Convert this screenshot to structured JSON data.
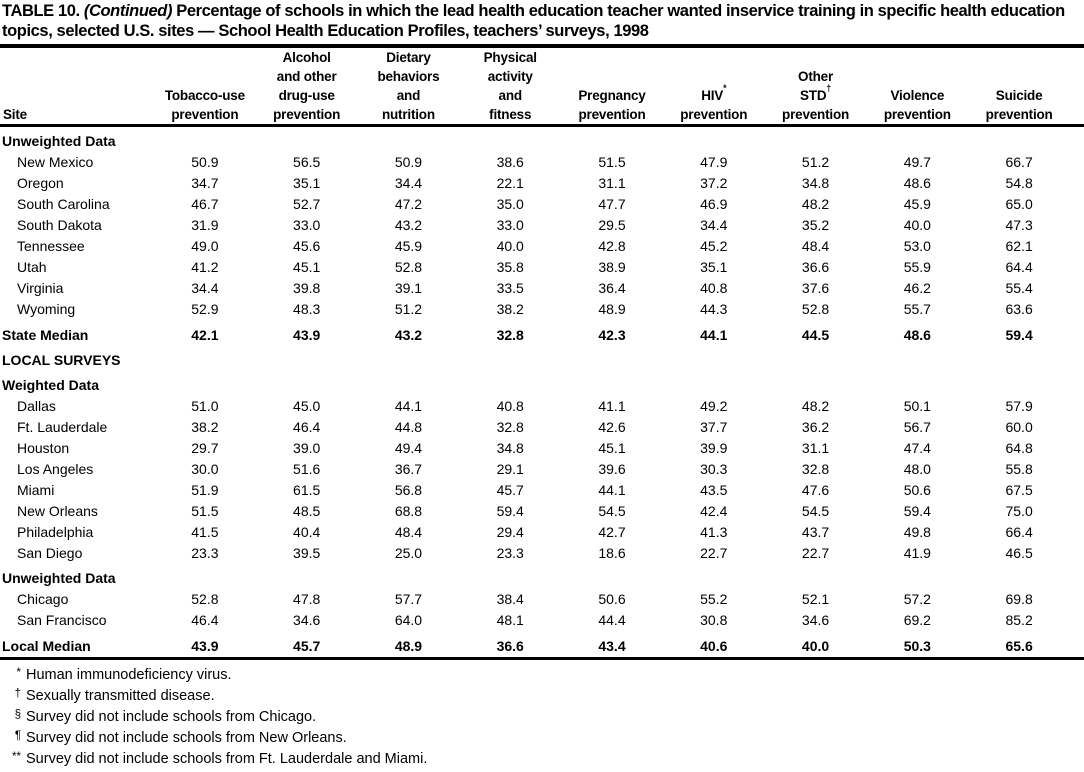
{
  "colors": {
    "text": "#000000",
    "background": "#ffffff",
    "rule": "#000000"
  },
  "title": {
    "prefix": "TABLE 10.",
    "continued": "(Continued)",
    "text": "Percentage of schools in which the lead health education teacher wanted inservice training in specific health education topics, selected U.S. sites — School Health Education Profiles, teachers’ surveys, 1998"
  },
  "table": {
    "site_header": "Site",
    "columns": [
      [
        "Tobacco-use",
        "prevention"
      ],
      [
        "Alcohol",
        "and other",
        "drug-use",
        "prevention"
      ],
      [
        "Dietary",
        "behaviors",
        "and",
        "nutrition"
      ],
      [
        "Physical",
        "activity",
        "and",
        "fitness"
      ],
      [
        "Pregnancy",
        "prevention"
      ],
      [
        "HIV*",
        "prevention"
      ],
      [
        "Other",
        "STD†",
        "prevention"
      ],
      [
        "Violence",
        "prevention"
      ],
      [
        "Suicide",
        "prevention"
      ]
    ],
    "rows": [
      {
        "type": "heading",
        "site": "Unweighted Data"
      },
      {
        "type": "data",
        "site": "New Mexico",
        "values": [
          "50.9",
          "56.5",
          "50.9",
          "38.6",
          "51.5",
          "47.9",
          "51.2",
          "49.7",
          "66.7"
        ]
      },
      {
        "type": "data",
        "site": "Oregon",
        "values": [
          "34.7",
          "35.1",
          "34.4",
          "22.1",
          "31.1",
          "37.2",
          "34.8",
          "48.6",
          "54.8"
        ]
      },
      {
        "type": "data",
        "site": "South Carolina",
        "values": [
          "46.7",
          "52.7",
          "47.2",
          "35.0",
          "47.7",
          "46.9",
          "48.2",
          "45.9",
          "65.0"
        ]
      },
      {
        "type": "data",
        "site": "South Dakota",
        "values": [
          "31.9",
          "33.0",
          "43.2",
          "33.0",
          "29.5",
          "34.4",
          "35.2",
          "40.0",
          "47.3"
        ]
      },
      {
        "type": "data",
        "site": "Tennessee",
        "values": [
          "49.0",
          "45.6",
          "45.9",
          "40.0",
          "42.8",
          "45.2",
          "48.4",
          "53.0",
          "62.1"
        ]
      },
      {
        "type": "data",
        "site": "Utah",
        "values": [
          "41.2",
          "45.1",
          "52.8",
          "35.8",
          "38.9",
          "35.1",
          "36.6",
          "55.9",
          "64.4"
        ]
      },
      {
        "type": "data",
        "site": "Virginia",
        "values": [
          "34.4",
          "39.8",
          "39.1",
          "33.5",
          "36.4",
          "40.8",
          "37.6",
          "46.2",
          "55.4"
        ]
      },
      {
        "type": "data",
        "site": "Wyoming",
        "values": [
          "52.9",
          "48.3",
          "51.2",
          "38.2",
          "48.9",
          "44.3",
          "52.8",
          "55.7",
          "63.6"
        ]
      },
      {
        "type": "summary",
        "site": "State Median",
        "values": [
          "42.1",
          "43.9",
          "43.2",
          "32.8",
          "42.3",
          "44.1",
          "44.5",
          "48.6",
          "59.4"
        ]
      },
      {
        "type": "heading",
        "site": "LOCAL SURVEYS"
      },
      {
        "type": "heading",
        "site": "Weighted Data"
      },
      {
        "type": "data",
        "site": "Dallas",
        "values": [
          "51.0",
          "45.0",
          "44.1",
          "40.8",
          "41.1",
          "49.2",
          "48.2",
          "50.1",
          "57.9"
        ]
      },
      {
        "type": "data",
        "site": "Ft. Lauderdale",
        "values": [
          "38.2",
          "46.4",
          "44.8",
          "32.8",
          "42.6",
          "37.7",
          "36.2",
          "56.7",
          "60.0"
        ]
      },
      {
        "type": "data",
        "site": "Houston",
        "values": [
          "29.7",
          "39.0",
          "49.4",
          "34.8",
          "45.1",
          "39.9",
          "31.1",
          "47.4",
          "64.8"
        ]
      },
      {
        "type": "data",
        "site": "Los Angeles",
        "values": [
          "30.0",
          "51.6",
          "36.7",
          "29.1",
          "39.6",
          "30.3",
          "32.8",
          "48.0",
          "55.8"
        ]
      },
      {
        "type": "data",
        "site": "Miami",
        "values": [
          "51.9",
          "61.5",
          "56.8",
          "45.7",
          "44.1",
          "43.5",
          "47.6",
          "50.6",
          "67.5"
        ]
      },
      {
        "type": "data",
        "site": "New Orleans",
        "values": [
          "51.5",
          "48.5",
          "68.8",
          "59.4",
          "54.5",
          "42.4",
          "54.5",
          "59.4",
          "75.0"
        ]
      },
      {
        "type": "data",
        "site": "Philadelphia",
        "values": [
          "41.5",
          "40.4",
          "48.4",
          "29.4",
          "42.7",
          "41.3",
          "43.7",
          "49.8",
          "66.4"
        ]
      },
      {
        "type": "data",
        "site": "San Diego",
        "values": [
          "23.3",
          "39.5",
          "25.0",
          "23.3",
          "18.6",
          "22.7",
          "22.7",
          "41.9",
          "46.5"
        ]
      },
      {
        "type": "heading",
        "site": "Unweighted Data"
      },
      {
        "type": "data",
        "site": "Chicago",
        "values": [
          "52.8",
          "47.8",
          "57.7",
          "38.4",
          "50.6",
          "55.2",
          "52.1",
          "57.2",
          "69.8"
        ]
      },
      {
        "type": "data",
        "site": "San Francisco",
        "values": [
          "46.4",
          "34.6",
          "64.0",
          "48.1",
          "44.4",
          "30.8",
          "34.6",
          "69.2",
          "85.2"
        ]
      },
      {
        "type": "summary",
        "site": "Local Median",
        "values": [
          "43.9",
          "45.7",
          "48.9",
          "36.6",
          "43.4",
          "40.6",
          "40.0",
          "50.3",
          "65.6"
        ]
      }
    ]
  },
  "footnotes": [
    {
      "symbol": "*",
      "text": "Human immunodeficiency virus."
    },
    {
      "symbol": "†",
      "text": "Sexually transmitted disease."
    },
    {
      "symbol": "§",
      "text": "Survey did not include schools from Chicago."
    },
    {
      "symbol": "¶",
      "text": "Survey did not include schools from New Orleans."
    },
    {
      "symbol": "**",
      "text": "Survey did not include schools from Ft. Lauderdale and Miami."
    }
  ]
}
